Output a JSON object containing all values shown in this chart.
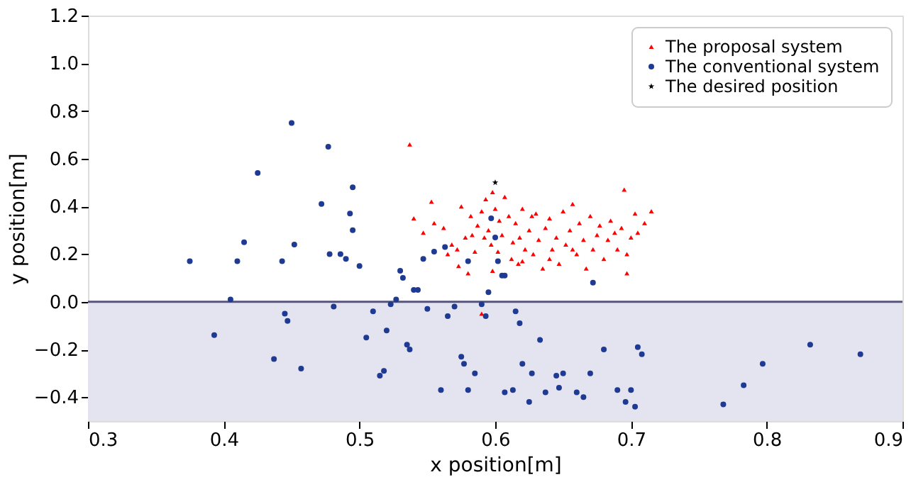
{
  "chart_data": {
    "type": "scatter",
    "xlabel": "x position[m]",
    "ylabel": "y position[m]",
    "xlim": [
      0.3,
      0.9
    ],
    "xticks": [
      0.3,
      0.4,
      0.5,
      0.6,
      0.7,
      0.8,
      0.9
    ],
    "ylim": [
      -0.5,
      1.2
    ],
    "yticks": [
      -0.4,
      -0.2,
      {
        "value": 0,
        "label": "0.0"
      },
      0.2,
      0.4,
      0.6,
      0.8,
      {
        "value": 1,
        "label": "1.0"
      },
      1.2
    ],
    "grid": false,
    "legend": "top right",
    "bands": [
      {
        "axis": "y",
        "from": -0.5,
        "to": 0,
        "color": "#e4e4f0"
      }
    ],
    "ref_lines": [
      {
        "axis": "y",
        "value": 0,
        "color": "#55557a"
      }
    ],
    "series": [
      {
        "name": "The proposal system",
        "color": "#ff0000",
        "marker": "triangle",
        "x": [
          0.537,
          0.54,
          0.547,
          0.553,
          0.555,
          0.562,
          0.565,
          0.568,
          0.572,
          0.575,
          0.578,
          0.582,
          0.583,
          0.585,
          0.587,
          0.59,
          0.592,
          0.593,
          0.595,
          0.597,
          0.598,
          0.6,
          0.602,
          0.603,
          0.605,
          0.607,
          0.61,
          0.612,
          0.613,
          0.615,
          0.617,
          0.618,
          0.62,
          0.622,
          0.625,
          0.627,
          0.628,
          0.63,
          0.632,
          0.635,
          0.637,
          0.64,
          0.642,
          0.645,
          0.647,
          0.65,
          0.652,
          0.655,
          0.657,
          0.66,
          0.662,
          0.665,
          0.667,
          0.67,
          0.672,
          0.675,
          0.677,
          0.68,
          0.683,
          0.685,
          0.688,
          0.69,
          0.693,
          0.695,
          0.697,
          0.7,
          0.703,
          0.705,
          0.71,
          0.715,
          0.697,
          0.598,
          0.59,
          0.573,
          0.58,
          0.62,
          0.64,
          0.657
        ],
        "values": [
          0.66,
          0.35,
          0.29,
          0.42,
          0.33,
          0.31,
          0.2,
          0.24,
          0.22,
          0.4,
          0.27,
          0.36,
          0.28,
          0.21,
          0.32,
          0.38,
          0.27,
          0.43,
          0.3,
          0.24,
          0.46,
          0.39,
          0.21,
          0.34,
          0.28,
          0.44,
          0.36,
          0.18,
          0.25,
          0.33,
          0.16,
          0.27,
          0.39,
          0.22,
          0.3,
          0.36,
          0.2,
          0.37,
          0.26,
          0.14,
          0.31,
          0.35,
          0.22,
          0.27,
          0.16,
          0.38,
          0.24,
          0.3,
          0.41,
          0.2,
          0.33,
          0.26,
          0.14,
          0.36,
          0.22,
          0.28,
          0.32,
          0.18,
          0.26,
          0.34,
          0.29,
          0.22,
          0.31,
          0.47,
          0.2,
          0.27,
          0.37,
          0.29,
          0.33,
          0.38,
          0.12,
          0.13,
          -0.05,
          0.15,
          0.12,
          0.17,
          0.18,
          0.22
        ]
      },
      {
        "name": "The conventional system",
        "color": "#1f3a93",
        "marker": "circle",
        "x": [
          0.375,
          0.393,
          0.405,
          0.41,
          0.415,
          0.425,
          0.437,
          0.443,
          0.445,
          0.447,
          0.45,
          0.452,
          0.457,
          0.472,
          0.477,
          0.478,
          0.481,
          0.486,
          0.49,
          0.493,
          0.495,
          0.495,
          0.5,
          0.505,
          0.51,
          0.515,
          0.518,
          0.52,
          0.523,
          0.527,
          0.53,
          0.532,
          0.535,
          0.537,
          0.54,
          0.543,
          0.547,
          0.55,
          0.555,
          0.56,
          0.563,
          0.565,
          0.57,
          0.575,
          0.577,
          0.58,
          0.58,
          0.585,
          0.59,
          0.593,
          0.595,
          0.597,
          0.6,
          0.602,
          0.605,
          0.607,
          0.607,
          0.613,
          0.615,
          0.618,
          0.62,
          0.625,
          0.627,
          0.633,
          0.637,
          0.645,
          0.647,
          0.65,
          0.66,
          0.665,
          0.672,
          0.67,
          0.68,
          0.69,
          0.696,
          0.7,
          0.703,
          0.705,
          0.708,
          0.768,
          0.783,
          0.797,
          0.832,
          0.869
        ],
        "values": [
          0.17,
          -0.14,
          0.01,
          0.17,
          0.25,
          0.54,
          -0.24,
          0.17,
          -0.05,
          -0.08,
          0.75,
          0.24,
          -0.28,
          0.41,
          0.65,
          0.2,
          -0.02,
          0.2,
          0.18,
          0.37,
          0.3,
          0.48,
          0.15,
          -0.15,
          -0.04,
          -0.31,
          -0.29,
          -0.12,
          -0.01,
          0.01,
          0.13,
          0.1,
          -0.18,
          -0.2,
          0.05,
          0.05,
          0.18,
          -0.03,
          0.21,
          -0.37,
          0.23,
          -0.06,
          -0.02,
          -0.23,
          -0.26,
          0.17,
          -0.37,
          -0.3,
          -0.01,
          -0.06,
          0.04,
          0.35,
          0.27,
          0.17,
          0.11,
          0.11,
          -0.38,
          -0.37,
          -0.04,
          -0.09,
          -0.26,
          -0.42,
          -0.3,
          -0.16,
          -0.38,
          -0.31,
          -0.36,
          -0.3,
          -0.38,
          -0.4,
          0.08,
          -0.3,
          -0.2,
          -0.37,
          -0.42,
          -0.37,
          -0.44,
          -0.19,
          -0.22,
          -0.43,
          -0.35,
          -0.26,
          -0.18,
          -0.22
        ]
      },
      {
        "name": "The desired position",
        "color": "#000000",
        "marker": "star",
        "x": [
          0.6
        ],
        "values": [
          0.5
        ]
      }
    ]
  }
}
